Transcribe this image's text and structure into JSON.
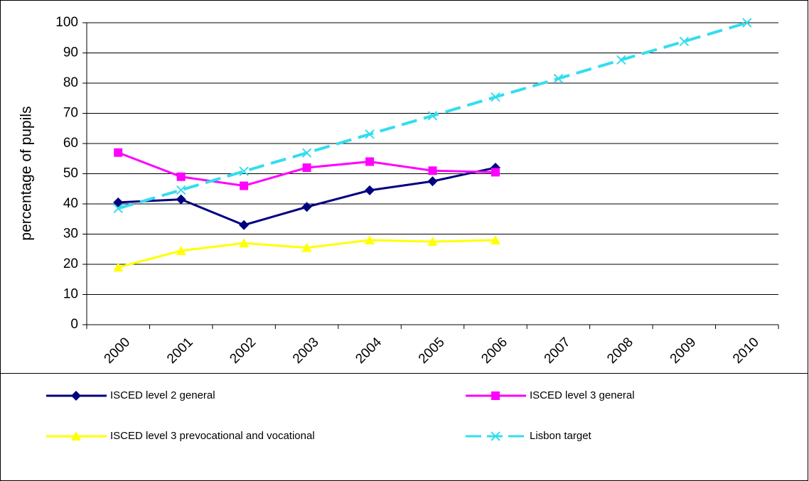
{
  "chart_data": {
    "type": "line",
    "y_label": "percentage of pupils",
    "categories": [
      "2000",
      "2001",
      "2002",
      "2003",
      "2004",
      "2005",
      "2006",
      "2007",
      "2008",
      "2009",
      "2010"
    ],
    "series": [
      {
        "name": "ISCED level 2 general",
        "color": "#000080",
        "marker": "diamond",
        "dashed": false,
        "values": [
          40.5,
          41.5,
          33,
          39,
          44.5,
          47.5,
          52,
          null,
          null,
          null,
          null
        ]
      },
      {
        "name": "ISCED level 3 general",
        "color": "#ff00ff",
        "marker": "square",
        "dashed": false,
        "values": [
          57,
          49,
          46,
          52,
          54,
          51,
          50.5,
          null,
          null,
          null,
          null
        ]
      },
      {
        "name": "ISCED level 3 prevocational and vocational",
        "color": "#ffff00",
        "marker": "triangle",
        "dashed": false,
        "values": [
          19,
          24.5,
          27,
          25.5,
          28,
          27.5,
          28,
          null,
          null,
          null,
          null
        ]
      },
      {
        "name": "Lisbon target",
        "color": "#33ddee",
        "marker": "x",
        "dashed": true,
        "values": [
          38.5,
          44.6,
          50.8,
          56.9,
          63.1,
          69.2,
          75.4,
          81.5,
          87.7,
          93.8,
          100
        ]
      }
    ],
    "ylim": [
      0,
      100
    ],
    "yticks": [
      0,
      10,
      20,
      30,
      40,
      50,
      60,
      70,
      80,
      90,
      100
    ],
    "grid": true
  }
}
